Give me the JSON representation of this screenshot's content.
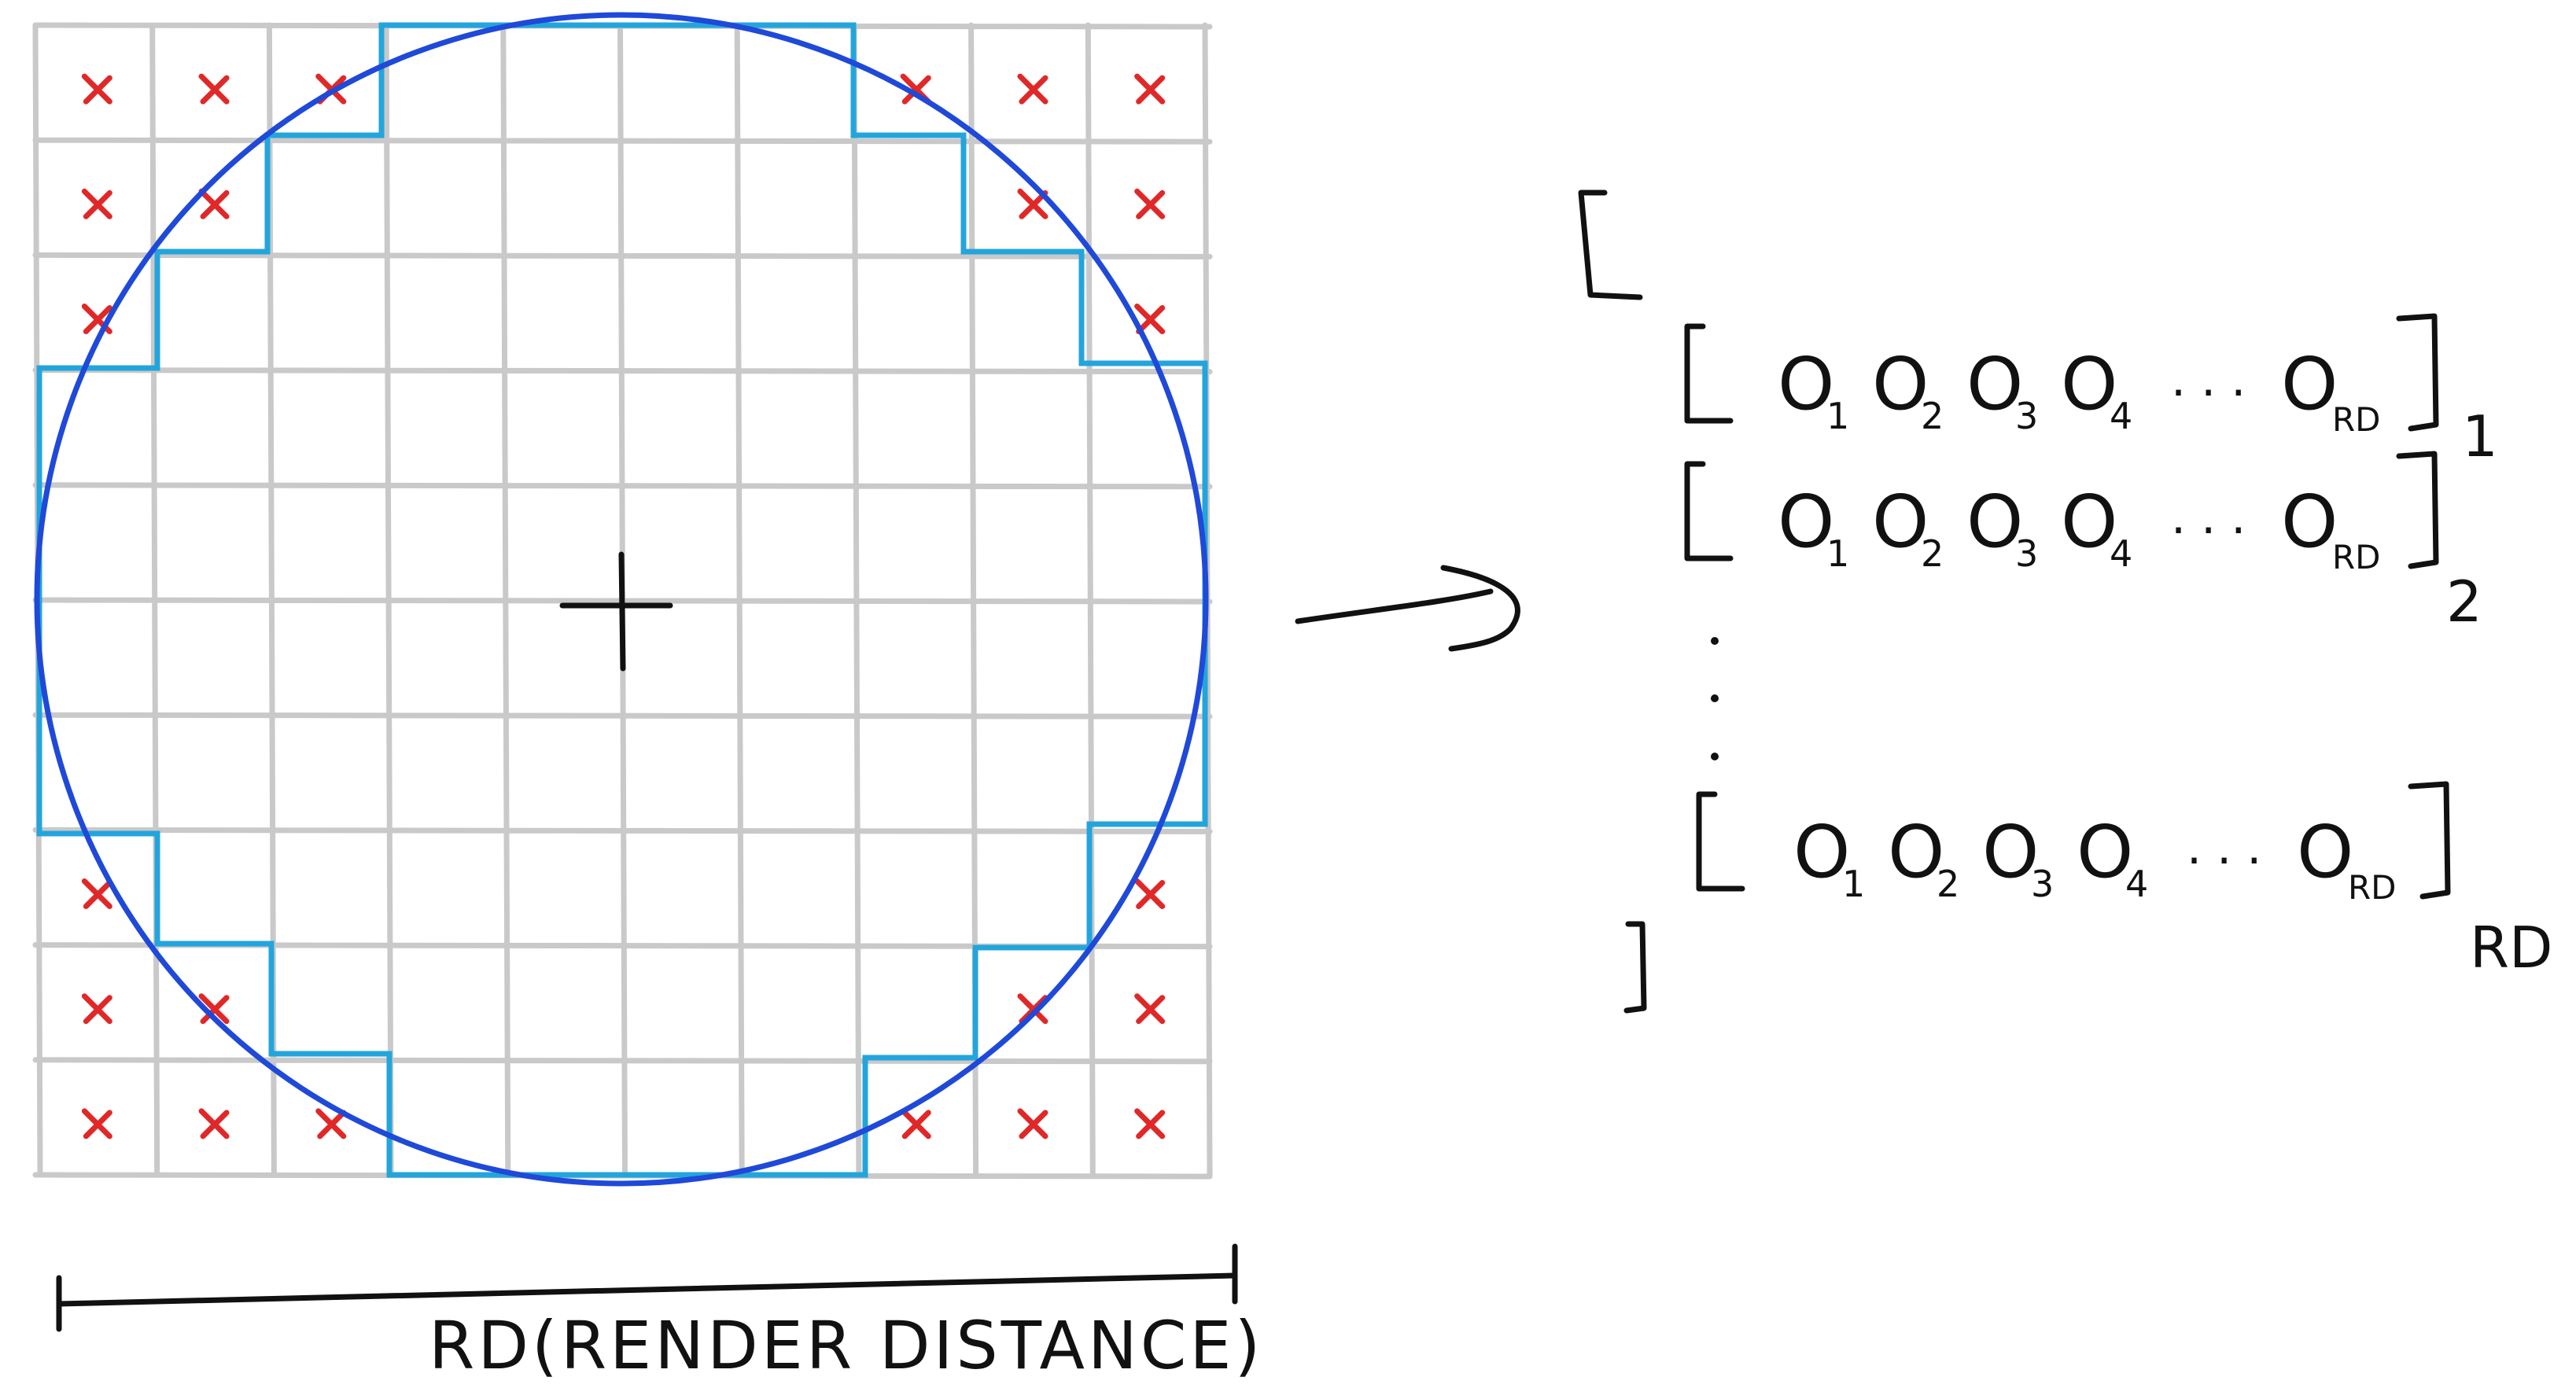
{
  "diagram": {
    "grid": {
      "rows": 10,
      "cols": 10,
      "excluded_cells": [
        [
          0,
          0
        ],
        [
          0,
          1
        ],
        [
          0,
          2
        ],
        [
          0,
          7
        ],
        [
          0,
          8
        ],
        [
          0,
          9
        ],
        [
          1,
          0
        ],
        [
          1,
          1
        ],
        [
          1,
          8
        ],
        [
          1,
          9
        ],
        [
          2,
          0
        ],
        [
          2,
          9
        ],
        [
          7,
          0
        ],
        [
          7,
          9
        ],
        [
          8,
          0
        ],
        [
          8,
          1
        ],
        [
          8,
          8
        ],
        [
          8,
          9
        ],
        [
          9,
          0
        ],
        [
          9,
          1
        ],
        [
          9,
          2
        ],
        [
          9,
          7
        ],
        [
          9,
          8
        ],
        [
          9,
          9
        ]
      ]
    },
    "colors": {
      "grid": "#c9c9c9",
      "excluded_mark": "#e02828",
      "loaded_outline": "#23a5dc",
      "circle": "#1f49d8",
      "ink": "#111111"
    },
    "measure_label": "RD(RENDER DISTANCE)",
    "array": {
      "rows": [
        {
          "items": [
            "O",
            "O",
            "O",
            "O"
          ],
          "subscripts": [
            "1",
            "2",
            "3",
            "4"
          ],
          "ellipsis": "· · ·",
          "last_item": "O",
          "last_subscript": "RD",
          "row_index": "1"
        },
        {
          "items": [
            "O",
            "O",
            "O",
            "O"
          ],
          "subscripts": [
            "1",
            "2",
            "3",
            "4"
          ],
          "ellipsis": "· · ·",
          "last_item": "O",
          "last_subscript": "RD",
          "row_index": "2"
        },
        {
          "items": [
            "O",
            "O",
            "O",
            "O"
          ],
          "subscripts": [
            "1",
            "2",
            "3",
            "4"
          ],
          "ellipsis": "· · ·",
          "last_item": "O",
          "last_subscript": "RD",
          "row_index": "RD"
        }
      ],
      "vertical_ellipsis": "·\n·\n·"
    }
  }
}
